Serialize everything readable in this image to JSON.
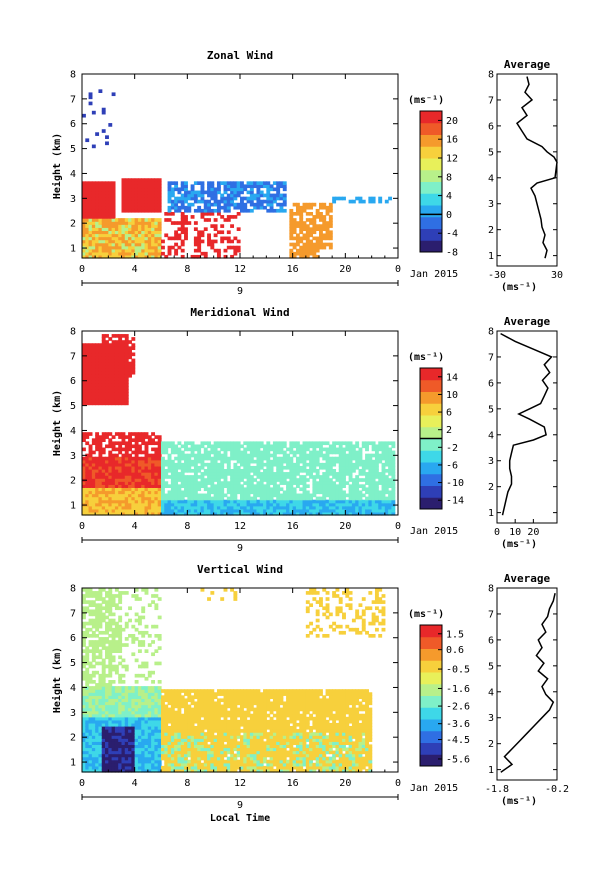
{
  "figure": {
    "xlabel": "Local Time",
    "ylabel": "Height (km)",
    "date_label": "Jan 2015",
    "day_label": "9",
    "unit_label": "(ms⁻¹)",
    "avg_title": "Average",
    "avg_xunit": "(ms⁻¹)",
    "colormap": [
      "#2b1e6e",
      "#2e3fb7",
      "#2f6fe3",
      "#29a8f0",
      "#3ed8e8",
      "#7ff0c8",
      "#b8f08a",
      "#e8f05a",
      "#f7d03c",
      "#f59a2c",
      "#ef5a28",
      "#e8282a"
    ]
  },
  "chart_data": [
    {
      "type": "heatmap",
      "title": "Zonal Wind",
      "xlabel": "Local Time",
      "ylabel": "Height (km)",
      "x_ticks": [
        "0",
        "4",
        "8",
        "12",
        "16",
        "20",
        "0"
      ],
      "y_ticks": [
        "1",
        "2",
        "3",
        "4",
        "5",
        "6",
        "7",
        "8"
      ],
      "xlim": [
        0,
        24
      ],
      "ylim": [
        0.6,
        8
      ],
      "colorbar": {
        "ticks": [
          "20",
          "16",
          "12",
          "8",
          "4",
          "0",
          "-4",
          "-8"
        ],
        "range": [
          -8,
          22
        ],
        "line_at": 0
      },
      "avg_profile": {
        "xlim": [
          -30,
          30
        ],
        "x_ticks": [
          "-30",
          "30"
        ],
        "heights": [
          0.9,
          1.2,
          1.5,
          1.8,
          2.1,
          2.4,
          2.7,
          3.0,
          3.3,
          3.6,
          3.8,
          4.0,
          4.3,
          4.6,
          4.8,
          5.0,
          5.2,
          5.5,
          5.8,
          6.1,
          6.4,
          6.7,
          7.0,
          7.3,
          7.6,
          7.9
        ],
        "values": [
          18,
          20,
          16,
          18,
          15,
          14,
          12,
          10,
          8,
          4,
          10,
          28,
          29,
          30,
          27,
          20,
          15,
          0,
          -5,
          -10,
          0,
          -5,
          5,
          -2,
          2,
          0
        ]
      }
    },
    {
      "type": "heatmap",
      "title": "Meridional Wind",
      "xlabel": "Local Time",
      "ylabel": "Height (km)",
      "x_ticks": [
        "0",
        "4",
        "8",
        "12",
        "16",
        "20",
        "0"
      ],
      "y_ticks": [
        "1",
        "2",
        "3",
        "4",
        "5",
        "6",
        "7",
        "8"
      ],
      "xlim": [
        0,
        24
      ],
      "ylim": [
        0.6,
        8
      ],
      "colorbar": {
        "ticks": [
          "14",
          "10",
          "6",
          "2",
          "-2",
          "-6",
          "-10",
          "-14"
        ],
        "range": [
          -16,
          16
        ],
        "line_at": 0
      },
      "avg_profile": {
        "xlim": [
          0,
          33
        ],
        "x_ticks": [
          "0",
          "10",
          "20"
        ],
        "heights": [
          0.9,
          1.2,
          1.5,
          1.8,
          2.1,
          2.4,
          2.7,
          3.0,
          3.3,
          3.6,
          3.8,
          4.0,
          4.3,
          4.6,
          4.8,
          5.0,
          5.2,
          5.5,
          5.8,
          6.1,
          6.4,
          6.7,
          7.0,
          7.3,
          7.6,
          7.9
        ],
        "values": [
          3,
          4,
          5,
          6,
          8,
          8,
          7,
          7,
          8,
          9,
          20,
          27,
          26,
          18,
          12,
          18,
          24,
          26,
          28,
          25,
          29,
          26,
          30,
          20,
          10,
          2
        ]
      }
    },
    {
      "type": "heatmap",
      "title": "Vertical Wind",
      "xlabel": "Local Time",
      "ylabel": "Height (km)",
      "x_ticks": [
        "0",
        "4",
        "8",
        "12",
        "16",
        "20",
        "0"
      ],
      "y_ticks": [
        "1",
        "2",
        "3",
        "4",
        "5",
        "6",
        "7",
        "8"
      ],
      "xlim": [
        0,
        24
      ],
      "ylim": [
        0.6,
        8
      ],
      "colorbar": {
        "ticks": [
          "1.5",
          "0.6",
          "-0.5",
          "-1.6",
          "-2.6",
          "-3.6",
          "-4.5",
          "-5.6"
        ],
        "range": [
          -6,
          2
        ],
        "line_at": null
      },
      "avg_profile": {
        "xlim": [
          -1.8,
          -0.2
        ],
        "x_ticks": [
          "-1.8",
          "-0.2"
        ],
        "heights": [
          0.9,
          1.2,
          1.5,
          1.8,
          2.1,
          2.4,
          2.7,
          3.0,
          3.3,
          3.6,
          3.9,
          4.2,
          4.5,
          4.8,
          5.1,
          5.4,
          5.7,
          6.0,
          6.3,
          6.6,
          6.9,
          7.2,
          7.5,
          7.8
        ],
        "values": [
          -1.7,
          -1.4,
          -1.6,
          -1.4,
          -1.2,
          -1.0,
          -0.8,
          -0.6,
          -0.4,
          -0.3,
          -0.5,
          -0.6,
          -0.45,
          -0.7,
          -0.55,
          -0.75,
          -0.6,
          -0.7,
          -0.5,
          -0.6,
          -0.45,
          -0.4,
          -0.3,
          -0.25
        ]
      }
    }
  ]
}
